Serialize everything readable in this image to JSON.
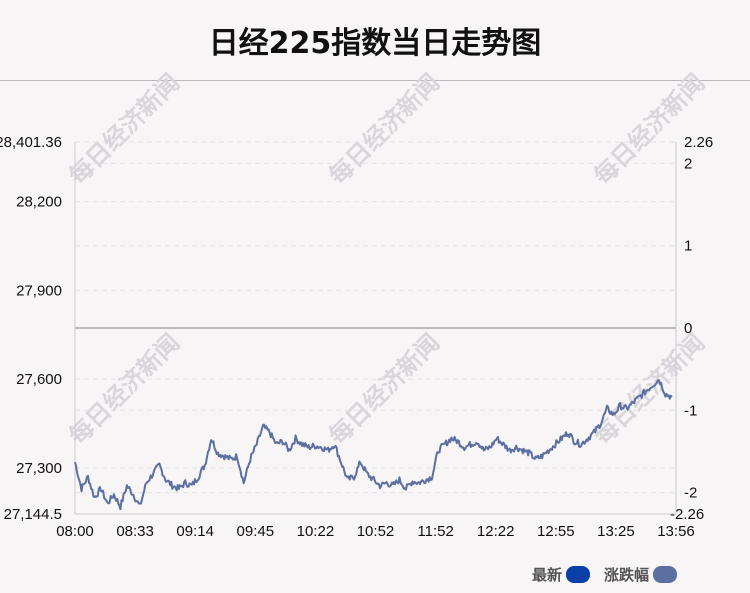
{
  "title": "日经225指数当日走势图",
  "watermark_text": "每日经济新闻",
  "legend": [
    {
      "label": "最新",
      "color": "#0b3fa8"
    },
    {
      "label": "涨跌幅",
      "color": "#5b6fa0"
    }
  ],
  "chart_data": {
    "type": "line",
    "title": "日经225指数当日走势图",
    "left_axis": {
      "min_label": "27,144.5",
      "max_label": "28,401.36",
      "min": 27144.5,
      "max": 28401.36,
      "ticks": [
        {
          "value": 28200,
          "label": "28,200"
        },
        {
          "value": 27900,
          "label": "27,900"
        },
        {
          "value": 27600,
          "label": "27,600"
        },
        {
          "value": 27300,
          "label": "27,300"
        }
      ]
    },
    "right_axis": {
      "min_label": "-2.26",
      "max_label": "2.26",
      "min": -2.26,
      "max": 2.26,
      "ticks": [
        {
          "value": 2,
          "label": "2"
        },
        {
          "value": 1,
          "label": "1"
        },
        {
          "value": 0,
          "label": "0"
        },
        {
          "value": -1,
          "label": "-1"
        },
        {
          "value": -2,
          "label": "-2"
        }
      ]
    },
    "x_ticks": [
      "08:00",
      "08:33",
      "09:14",
      "09:45",
      "10:22",
      "10:52",
      "11:52",
      "12:22",
      "12:55",
      "13:25",
      "13:56"
    ],
    "grid": true,
    "legend_position": "bottom-right",
    "series": [
      {
        "name": "涨跌幅",
        "color": "#5b6fa0",
        "x": [
          0,
          0.5,
          1,
          1.5,
          2,
          2.5,
          3,
          3.5,
          4,
          4.5,
          5,
          5.5,
          6,
          6.5,
          7,
          7.5,
          8,
          8.5,
          9,
          9.5,
          10
        ],
        "values": [
          [
            0,
            27320
          ],
          [
            1,
            27230
          ],
          [
            2,
            27270
          ],
          [
            3,
            27200
          ],
          [
            4,
            27230
          ],
          [
            5,
            27180
          ],
          [
            6,
            27210
          ],
          [
            7,
            27170
          ],
          [
            8,
            27240
          ],
          [
            9,
            27210
          ],
          [
            10,
            27170
          ],
          [
            11,
            27250
          ],
          [
            12,
            27280
          ],
          [
            13,
            27310
          ],
          [
            14,
            27260
          ],
          [
            15,
            27240
          ],
          [
            16,
            27230
          ],
          [
            17,
            27250
          ],
          [
            18,
            27240
          ],
          [
            19,
            27270
          ],
          [
            20,
            27310
          ],
          [
            21,
            27400
          ],
          [
            22,
            27350
          ],
          [
            23,
            27340
          ],
          [
            24,
            27330
          ],
          [
            25,
            27340
          ],
          [
            26,
            27250
          ],
          [
            27,
            27330
          ],
          [
            28,
            27380
          ],
          [
            29,
            27440
          ],
          [
            30,
            27420
          ],
          [
            31,
            27380
          ],
          [
            32,
            27390
          ],
          [
            33,
            27360
          ],
          [
            34,
            27400
          ],
          [
            35,
            27380
          ],
          [
            36,
            27370
          ],
          [
            37,
            27375
          ],
          [
            38,
            27370
          ],
          [
            39,
            27360
          ],
          [
            40,
            27380
          ],
          [
            41,
            27320
          ],
          [
            42,
            27260
          ],
          [
            43,
            27270
          ],
          [
            44,
            27320
          ],
          [
            45,
            27280
          ],
          [
            46,
            27260
          ],
          [
            47,
            27240
          ],
          [
            48,
            27250
          ],
          [
            49,
            27240
          ],
          [
            50,
            27260
          ],
          [
            51,
            27230
          ],
          [
            52,
            27255
          ],
          [
            53,
            27250
          ],
          [
            54,
            27260
          ],
          [
            55,
            27270
          ],
          [
            56,
            27360
          ],
          [
            57,
            27380
          ],
          [
            58,
            27400
          ],
          [
            59,
            27390
          ],
          [
            60,
            27370
          ],
          [
            61,
            27380
          ],
          [
            62,
            27390
          ],
          [
            63,
            27360
          ],
          [
            64,
            27370
          ],
          [
            65,
            27400
          ],
          [
            66,
            27380
          ],
          [
            67,
            27360
          ],
          [
            68,
            27370
          ],
          [
            69,
            27360
          ],
          [
            70,
            27350
          ],
          [
            71,
            27330
          ],
          [
            72,
            27340
          ],
          [
            73,
            27360
          ],
          [
            74,
            27380
          ],
          [
            75,
            27400
          ],
          [
            76,
            27420
          ],
          [
            77,
            27390
          ],
          [
            78,
            27380
          ],
          [
            79,
            27400
          ],
          [
            80,
            27420
          ],
          [
            81,
            27450
          ],
          [
            82,
            27500
          ],
          [
            83,
            27480
          ],
          [
            84,
            27510
          ],
          [
            85,
            27500
          ],
          [
            86,
            27520
          ],
          [
            87,
            27540
          ],
          [
            88,
            27560
          ],
          [
            89,
            27580
          ],
          [
            90,
            27600
          ],
          [
            91,
            27550
          ],
          [
            92,
            27540
          ]
        ]
      }
    ]
  }
}
